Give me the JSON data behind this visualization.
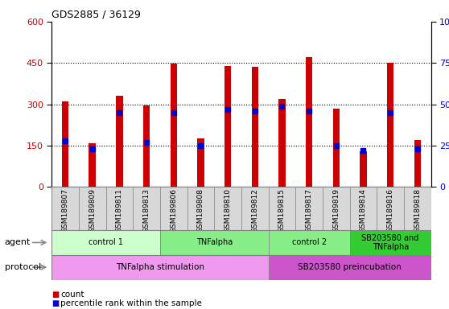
{
  "title": "GDS2885 / 36129",
  "samples": [
    "GSM189807",
    "GSM189809",
    "GSM189811",
    "GSM189813",
    "GSM189806",
    "GSM189808",
    "GSM189810",
    "GSM189812",
    "GSM189815",
    "GSM189817",
    "GSM189819",
    "GSM189814",
    "GSM189816",
    "GSM189818"
  ],
  "counts": [
    310,
    160,
    330,
    297,
    447,
    175,
    440,
    435,
    320,
    470,
    285,
    130,
    450,
    170
  ],
  "percentile": [
    28,
    23,
    45,
    27,
    45,
    25,
    47,
    46,
    49,
    46,
    25,
    22,
    45,
    23
  ],
  "ylim_left": [
    0,
    600
  ],
  "ylim_right": [
    0,
    100
  ],
  "yticks_left": [
    0,
    150,
    300,
    450,
    600
  ],
  "yticks_right": [
    0,
    25,
    50,
    75,
    100
  ],
  "bar_color": "#cc0000",
  "pct_color": "#0000cc",
  "agent_groups": [
    {
      "label": "control 1",
      "start": 0,
      "end": 4,
      "color": "#ccffcc"
    },
    {
      "label": "TNFalpha",
      "start": 4,
      "end": 8,
      "color": "#88ee88"
    },
    {
      "label": "control 2",
      "start": 8,
      "end": 11,
      "color": "#88ee88"
    },
    {
      "label": "SB203580 and\nTNFalpha",
      "start": 11,
      "end": 14,
      "color": "#33cc33"
    }
  ],
  "protocol_groups": [
    {
      "label": "TNFalpha stimulation",
      "start": 0,
      "end": 8,
      "color": "#ee99ee"
    },
    {
      "label": "SB203580 preincubation",
      "start": 8,
      "end": 14,
      "color": "#cc55cc"
    }
  ],
  "agent_label": "agent",
  "protocol_label": "protocol",
  "legend_count": "count",
  "legend_pct": "percentile rank within the sample",
  "bar_width": 0.25,
  "grid_vals": [
    150,
    300,
    450
  ],
  "label_bg": "#d8d8d8",
  "label_border": "#888888"
}
